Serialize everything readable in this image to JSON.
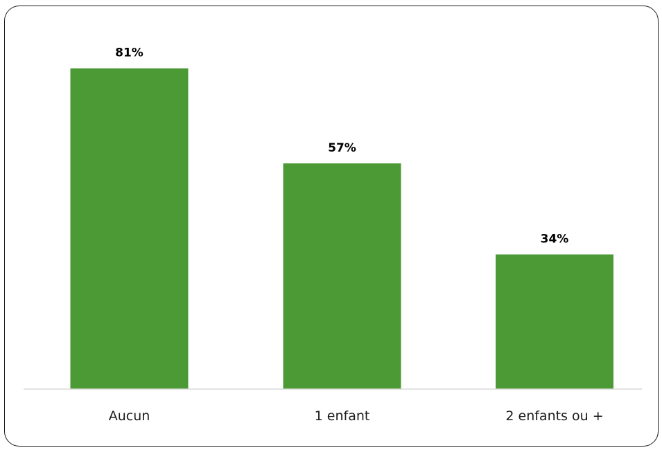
{
  "chart_data": {
    "type": "bar",
    "categories": [
      "Aucun",
      "1 enfant",
      "2 enfants ou +"
    ],
    "values": [
      81,
      57,
      34
    ],
    "value_labels": [
      "81%",
      "57%",
      "34%"
    ],
    "unit": "%",
    "title": "",
    "xlabel": "",
    "ylabel": "",
    "ylim": [
      0,
      100
    ],
    "grid": false,
    "legend": "none",
    "bar_color": "#4c9a35",
    "axis_color": "#d9d9d9"
  }
}
